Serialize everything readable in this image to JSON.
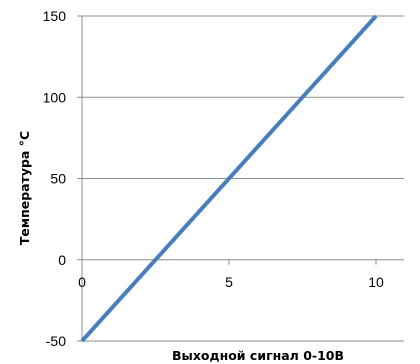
{
  "chart_data": {
    "type": "line",
    "title": "",
    "xlabel": "Выходной сигнал 0-10В",
    "ylabel": "Температура °С",
    "xlim": [
      0,
      10
    ],
    "ylim": [
      -50,
      150
    ],
    "x_ticks": [
      0,
      5,
      10
    ],
    "x_tick_labels": [
      "0",
      "5",
      "10"
    ],
    "y_ticks": [
      -50,
      0,
      50,
      100,
      150
    ],
    "y_tick_labels": [
      "-50",
      "0",
      "50",
      "100",
      "150"
    ],
    "grid": "horizontal",
    "legend": "none",
    "series": [
      {
        "x": [
          0,
          10
        ],
        "y": [
          -50,
          150
        ],
        "color": "#4a7ebb"
      }
    ]
  }
}
